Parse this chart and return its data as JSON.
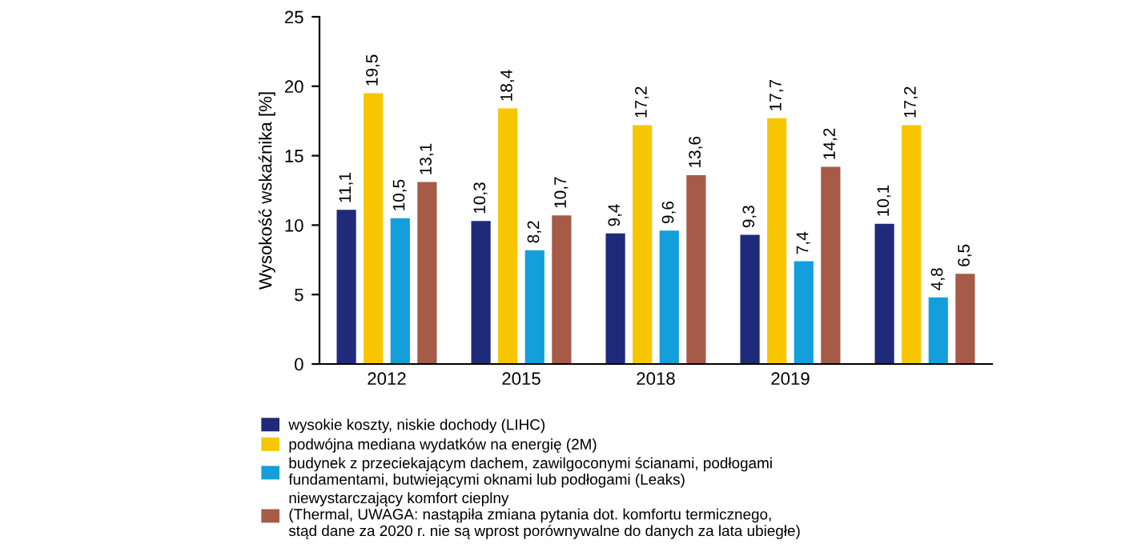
{
  "chart_data": {
    "type": "bar",
    "ylabel": "Wysokość wskaźnika [%]",
    "categories": [
      "2012",
      "2015",
      "2018",
      "2019",
      null
    ],
    "series": [
      {
        "name": "wysokie koszty, niskie dochody (LIHC)",
        "color": "#1f2a7a",
        "values": [
          11.1,
          10.3,
          9.4,
          9.3,
          10.1
        ],
        "value_labels": [
          "11,1",
          "10,3",
          "9,4",
          "9,3",
          "10,1"
        ]
      },
      {
        "name": "podwójna mediana wydatków na energię (2M)",
        "color": "#f7c600",
        "values": [
          19.5,
          18.4,
          17.2,
          17.7,
          17.2
        ],
        "value_labels": [
          "19,5",
          "18,4",
          "17,2",
          "17,7",
          "17,2"
        ]
      },
      {
        "name": "budynek z przeciekającym dachem, zawilgoconymi ścianami, podłogami\nfundamentami, butwiejącymi oknami lub podłogami (Leaks)",
        "color": "#139fdc",
        "values": [
          10.5,
          8.2,
          9.6,
          7.4,
          4.8
        ],
        "value_labels": [
          "10,5",
          "8,2",
          "9,6",
          "7,4",
          "4,8"
        ]
      },
      {
        "name": "niewystarczający komfort cieplny\n(Thermal, UWAGA: nastąpiła zmiana pytania dot. komfortu termicznego,\nstąd dane za 2020 r. nie są wprost porównywalne do danych za lata ubiegłe)",
        "color": "#a65a48",
        "values": [
          13.1,
          10.7,
          13.6,
          14.2,
          6.5
        ],
        "value_labels": [
          "13,1",
          "10,7",
          "13,6",
          "14,2",
          "6,5"
        ]
      }
    ],
    "ylim": [
      0,
      25
    ],
    "yticks": [
      0,
      5,
      10,
      15,
      20,
      25
    ],
    "grid": false,
    "legend": "bottom"
  }
}
